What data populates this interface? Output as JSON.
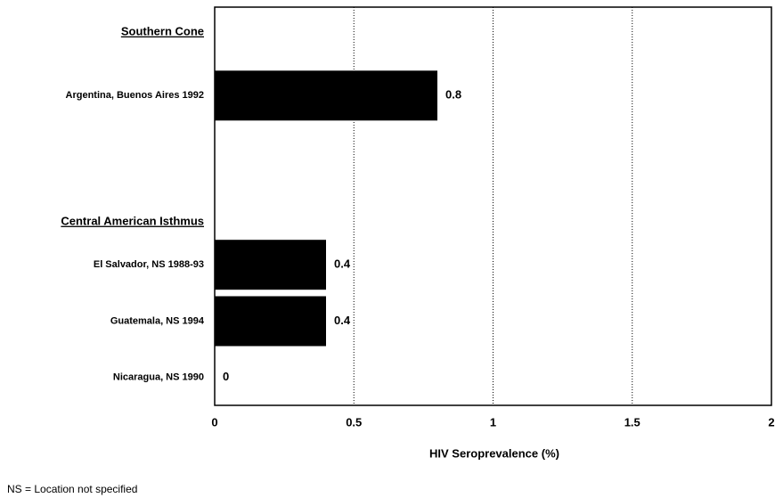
{
  "chart_data": {
    "type": "bar",
    "orientation": "horizontal",
    "groups": [
      {
        "name": "Southern Cone",
        "categories": [
          "Argentina, Buenos Aires 1992"
        ],
        "values": [
          0.8
        ]
      },
      {
        "name": "Central American Isthmus",
        "categories": [
          "El Salvador, NS 1988-93",
          "Guatemala, NS 1994",
          "Nicaragua, NS 1990"
        ],
        "values": [
          0.4,
          0.4,
          0
        ]
      }
    ],
    "color": "#000000",
    "xlabel": "HIV Seroprevalence (%)",
    "xlim": [
      0,
      2
    ],
    "xticks": [
      0,
      0.5,
      1,
      1.5,
      2
    ],
    "grid": true,
    "footnote": "NS = Location not specified"
  }
}
